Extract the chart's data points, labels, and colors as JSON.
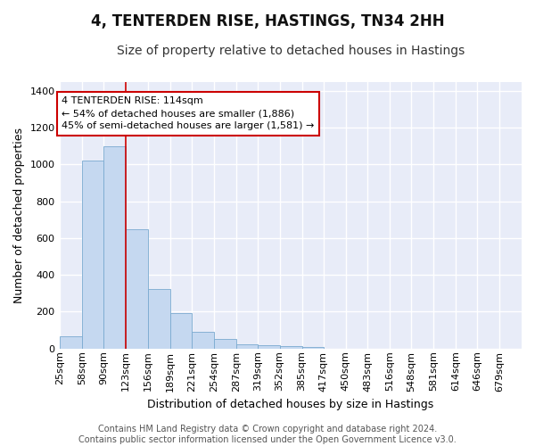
{
  "title_line1": "4, TENTERDEN RISE, HASTINGS, TN34 2HH",
  "title_line2": "Size of property relative to detached houses in Hastings",
  "xlabel": "Distribution of detached houses by size in Hastings",
  "ylabel": "Number of detached properties",
  "bin_labels": [
    "25sqm",
    "58sqm",
    "90sqm",
    "123sqm",
    "156sqm",
    "189sqm",
    "221sqm",
    "254sqm",
    "287sqm",
    "319sqm",
    "352sqm",
    "385sqm",
    "417sqm",
    "450sqm",
    "483sqm",
    "516sqm",
    "548sqm",
    "581sqm",
    "614sqm",
    "646sqm",
    "679sqm"
  ],
  "bin_edges": [
    25,
    58,
    90,
    123,
    156,
    189,
    221,
    254,
    287,
    319,
    352,
    385,
    417,
    450,
    483,
    516,
    548,
    581,
    614,
    646,
    679,
    712
  ],
  "bar_heights": [
    65,
    1020,
    1100,
    650,
    325,
    195,
    90,
    50,
    25,
    20,
    15,
    10,
    0,
    0,
    0,
    0,
    0,
    0,
    0,
    0,
    0
  ],
  "bar_color": "#c5d8f0",
  "bar_edgecolor": "#7aaad0",
  "background_color": "#e8ecf8",
  "grid_color": "#ffffff",
  "red_line_x": 123,
  "annotation_line1": "4 TENTERDEN RISE: 114sqm",
  "annotation_line2": "← 54% of detached houses are smaller (1,886)",
  "annotation_line3": "45% of semi-detached houses are larger (1,581) →",
  "annotation_box_facecolor": "#ffffff",
  "annotation_box_edgecolor": "#cc0000",
  "ylim": [
    0,
    1450
  ],
  "yticks": [
    0,
    200,
    400,
    600,
    800,
    1000,
    1200,
    1400
  ],
  "footer_text": "Contains HM Land Registry data © Crown copyright and database right 2024.\nContains public sector information licensed under the Open Government Licence v3.0.",
  "title_fontsize": 12,
  "subtitle_fontsize": 10,
  "axis_label_fontsize": 9,
  "tick_fontsize": 8,
  "annotation_fontsize": 8,
  "footer_fontsize": 7
}
